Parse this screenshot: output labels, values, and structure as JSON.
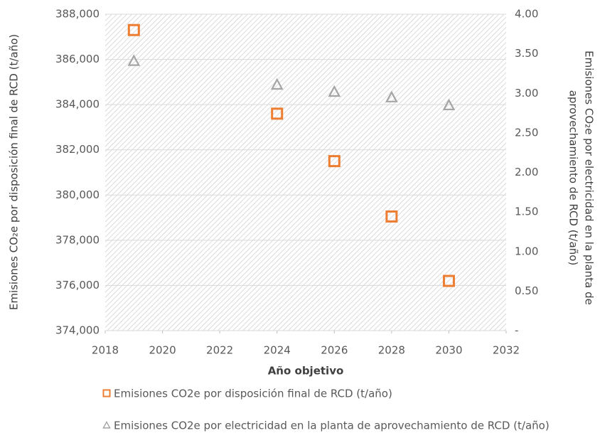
{
  "chart_data": {
    "type": "scatter",
    "x_label": "Año objetivo",
    "y_label": "Emisiones CO₂e por disposición final de RCD (t/año)",
    "y2_label": [
      "Emisiones CO₂e por electricidad en la planta de",
      "aprovechamiento de RCD (t/año)"
    ],
    "x": [
      2019,
      2024,
      2026,
      2028,
      2030
    ],
    "series": [
      {
        "name": "Emisiones CO2e por disposición final de RCD (t/año)",
        "color": "#ED7D31",
        "marker": "square",
        "axis": "y",
        "values": [
          387300,
          383600,
          381500,
          379050,
          376200
        ]
      },
      {
        "name": "Emisiones CO2e por electricidad en la planta de aprovechamiento de RCD (t/año)",
        "color": "#A5A5A5",
        "marker": "triangle",
        "axis": "y2",
        "values": [
          3.41,
          3.11,
          3.02,
          2.95,
          2.85
        ]
      }
    ],
    "xlim": [
      2018,
      2032
    ],
    "xticks": [
      2018,
      2020,
      2022,
      2024,
      2026,
      2028,
      2030,
      2032
    ],
    "ylim": [
      374000,
      388000
    ],
    "yticks": [
      {
        "value": 374000,
        "label": "374,000"
      },
      {
        "value": 376000,
        "label": "376,000"
      },
      {
        "value": 378000,
        "label": "378,000"
      },
      {
        "value": 380000,
        "label": "380,000"
      },
      {
        "value": 382000,
        "label": "382,000"
      },
      {
        "value": 384000,
        "label": "384,000"
      },
      {
        "value": 386000,
        "label": "386,000"
      },
      {
        "value": 388000,
        "label": "388,000"
      }
    ],
    "y2lim": [
      0,
      4
    ],
    "y2ticks": [
      {
        "value": 0,
        "label": "-"
      },
      {
        "value": 0.5,
        "label": "0.50"
      },
      {
        "value": 1,
        "label": "1.00"
      },
      {
        "value": 1.5,
        "label": "1.50"
      },
      {
        "value": 2,
        "label": "2.00"
      },
      {
        "value": 2.5,
        "label": "2.50"
      },
      {
        "value": 3,
        "label": "3.00"
      },
      {
        "value": 3.5,
        "label": "3.50"
      },
      {
        "value": 4,
        "label": "4.00"
      }
    ],
    "grid": true
  }
}
